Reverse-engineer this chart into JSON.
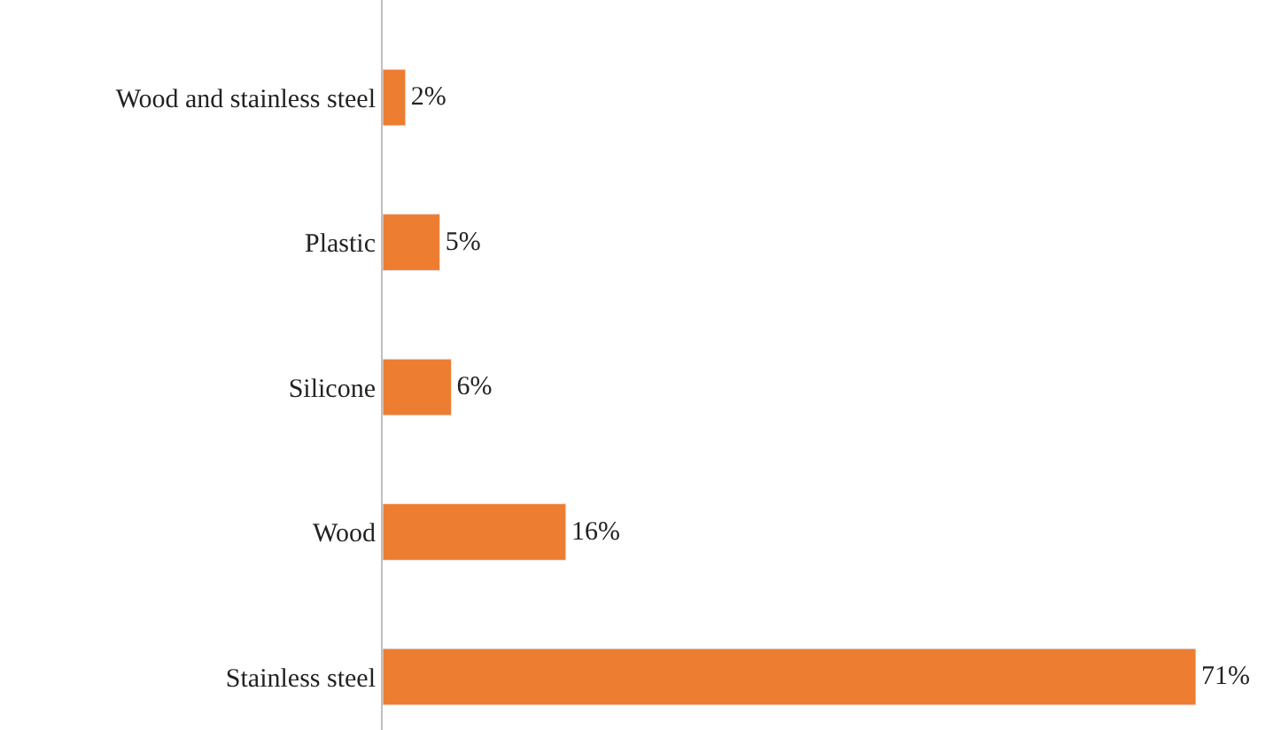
{
  "chart_data": {
    "type": "bar",
    "orientation": "horizontal",
    "categories": [
      "Wood and stainless steel",
      "Plastic",
      "Silicone",
      "Wood",
      "Stainless steel"
    ],
    "values": [
      2,
      5,
      6,
      16,
      71
    ],
    "value_labels": [
      "2%",
      "5%",
      "6%",
      "16%",
      "71%"
    ],
    "color": "#ed7d31",
    "tick_labels": "y"
  }
}
